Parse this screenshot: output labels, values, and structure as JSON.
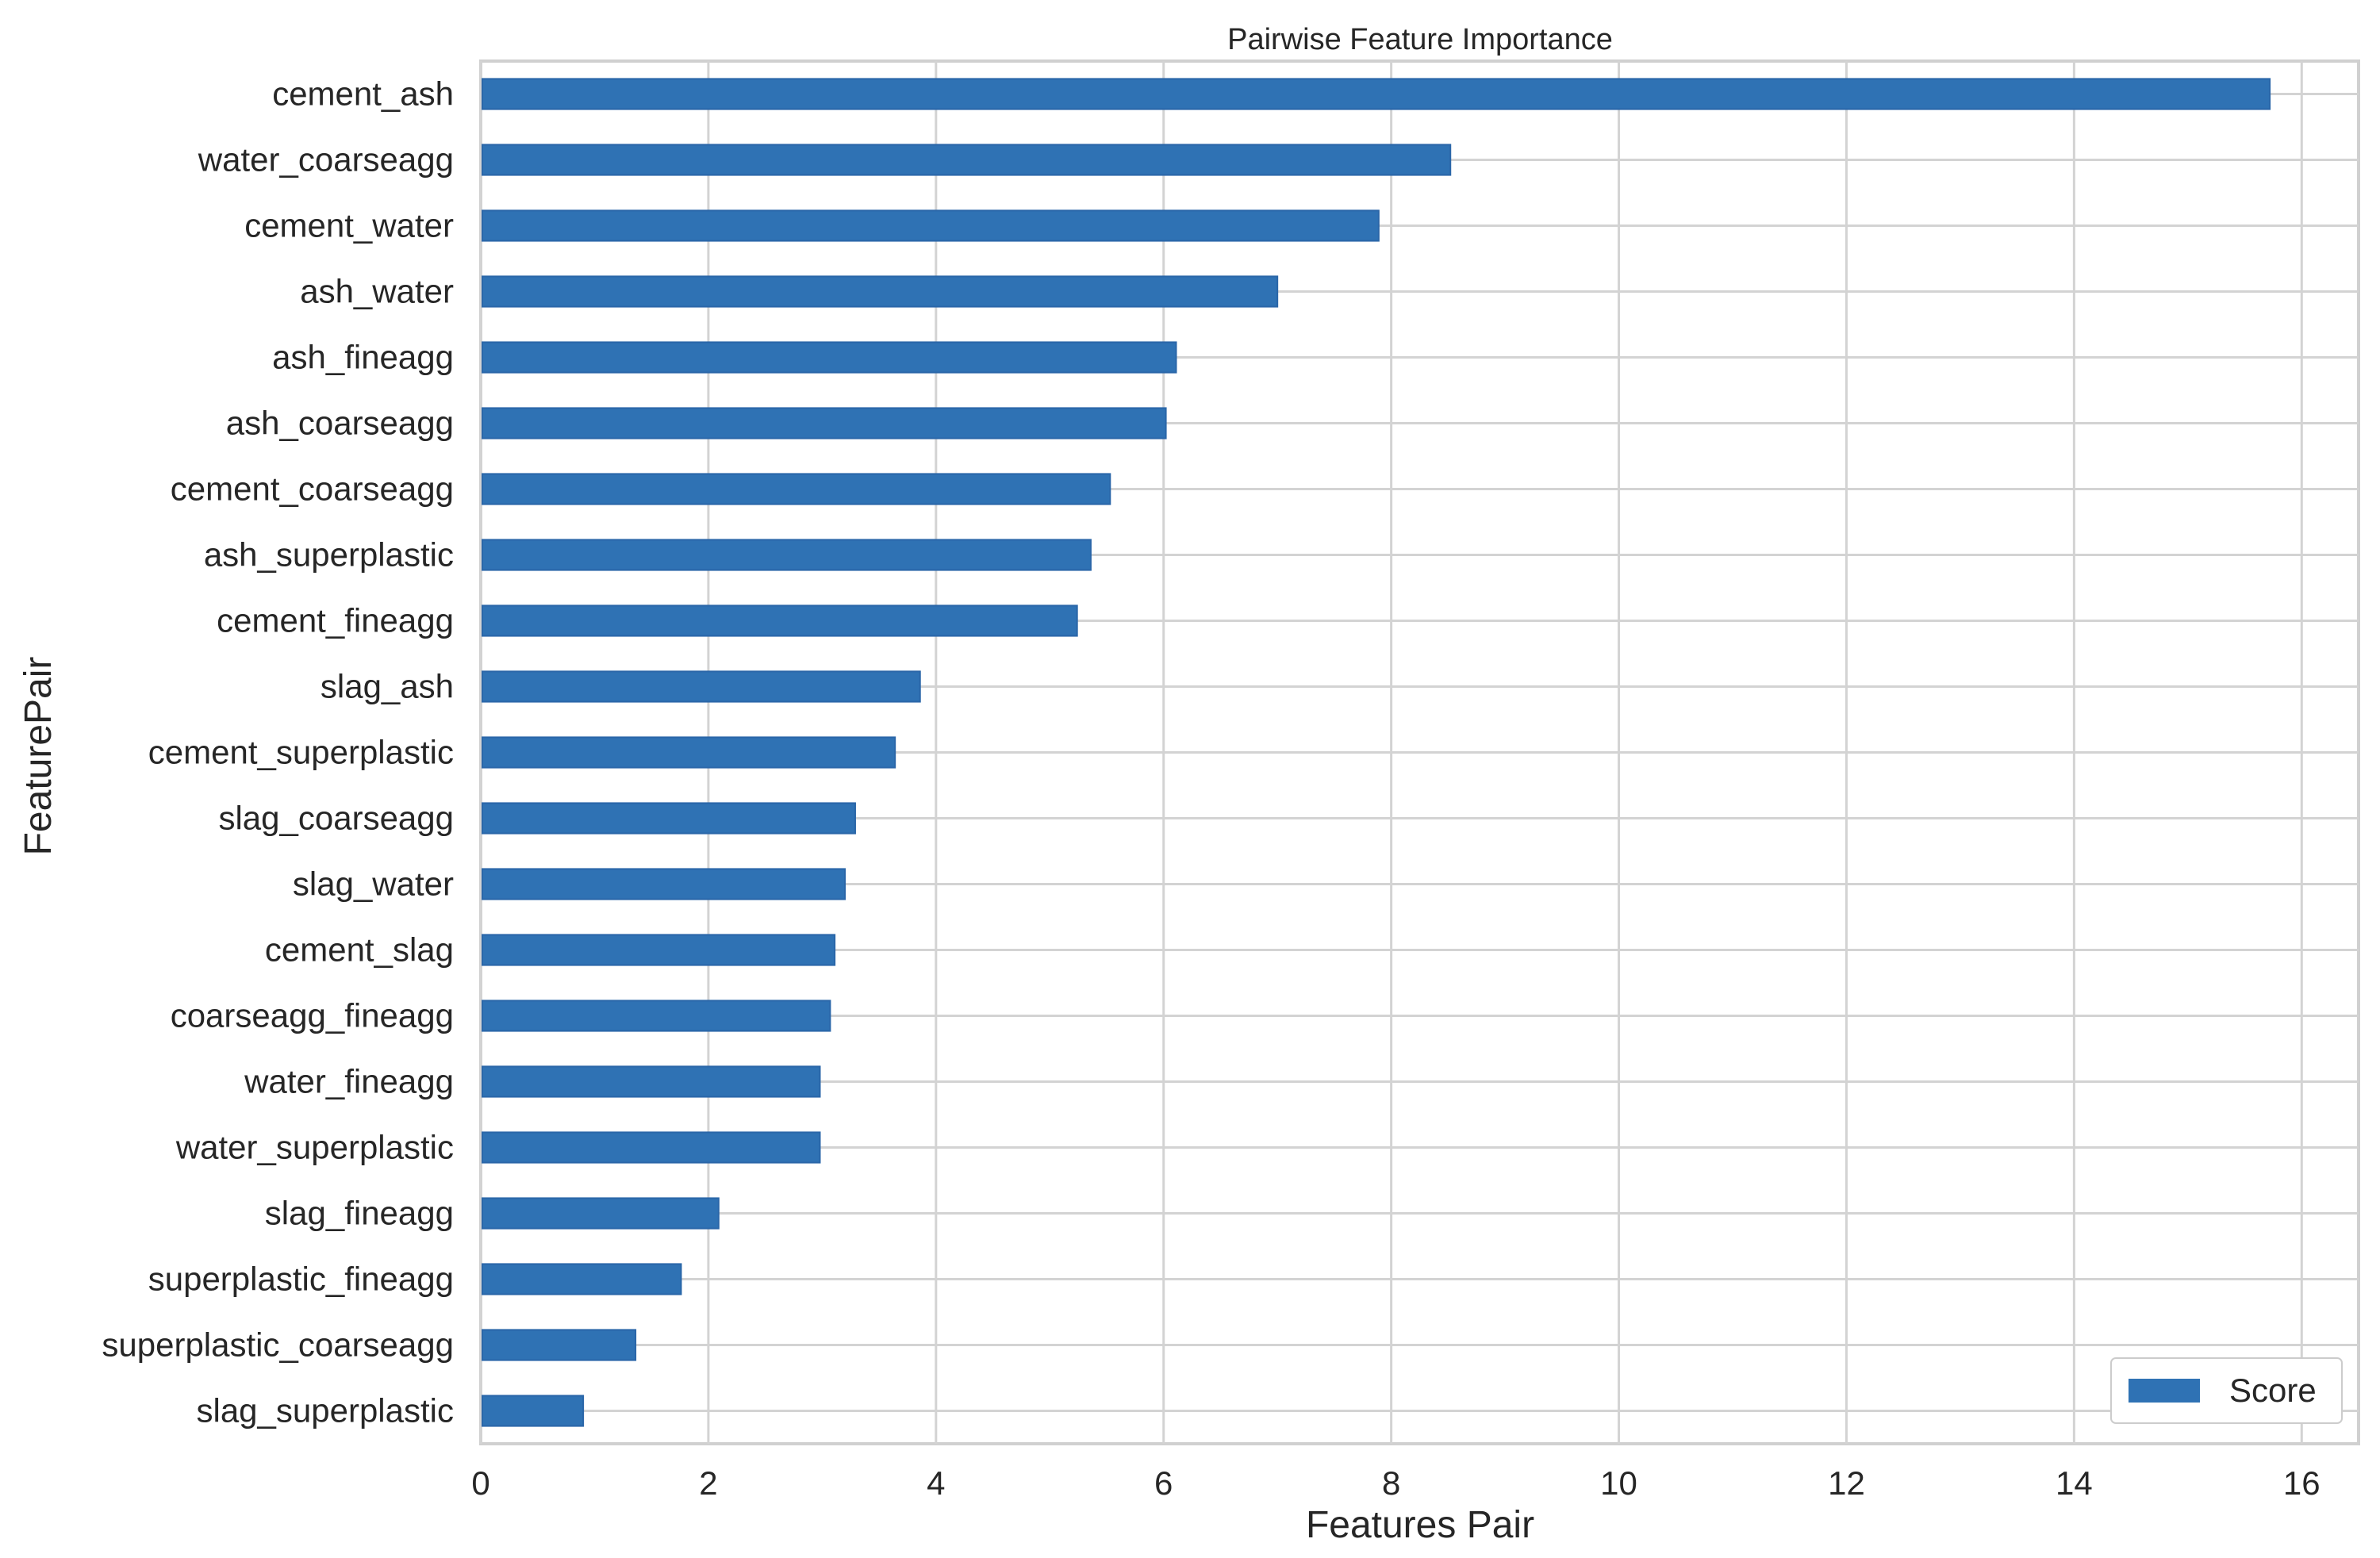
{
  "chart_data": {
    "type": "bar",
    "orientation": "horizontal",
    "title": "Pairwise Feature Importance",
    "xlabel": "Features Pair",
    "ylabel": "FeaturePair",
    "xlim": [
      0,
      16.5
    ],
    "xticks": [
      0,
      2,
      4,
      6,
      8,
      10,
      12,
      14,
      16
    ],
    "grid": true,
    "legend_placement": "lower-right",
    "bar_color": "#2f72b4",
    "categories": [
      "cement_ash",
      "water_coarseagg",
      "cement_water",
      "ash_water",
      "ash_fineagg",
      "ash_coarseagg",
      "cement_coarseagg",
      "ash_superplastic",
      "cement_fineagg",
      "slag_ash",
      "cement_superplastic",
      "slag_coarseagg",
      "slag_water",
      "cement_slag",
      "coarseagg_fineagg",
      "water_fineagg",
      "water_superplastic",
      "slag_fineagg",
      "superplastic_fineagg",
      "superplastic_coarseagg",
      "slag_superplastic"
    ],
    "series": [
      {
        "name": "Score",
        "values": [
          15.72,
          8.52,
          7.89,
          7.0,
          6.11,
          6.02,
          5.53,
          5.36,
          5.24,
          3.86,
          3.64,
          3.29,
          3.2,
          3.11,
          3.07,
          2.98,
          2.98,
          2.09,
          1.76,
          1.36,
          0.9
        ]
      }
    ]
  }
}
